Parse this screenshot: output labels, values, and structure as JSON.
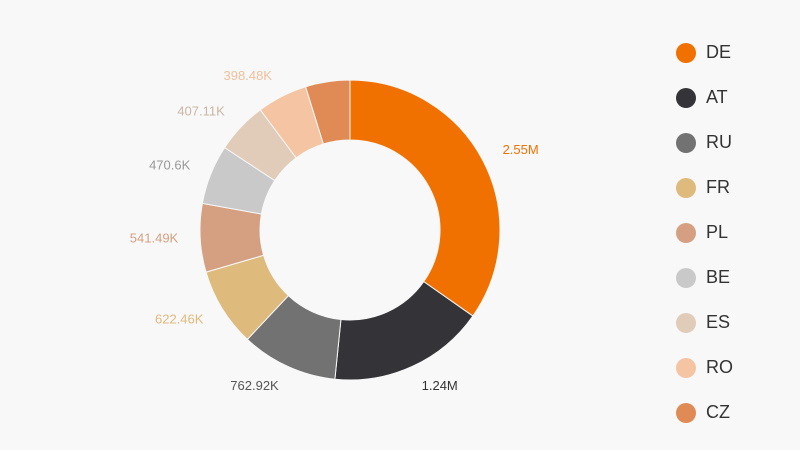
{
  "chart_data": {
    "type": "pie",
    "variant": "donut",
    "title": "",
    "categories": [
      "DE",
      "AT",
      "RU",
      "FR",
      "PL",
      "BE",
      "ES",
      "RO",
      "CZ"
    ],
    "values": [
      2550000,
      1240000,
      762920,
      622460,
      541490,
      470600,
      407110,
      398480,
      351000
    ],
    "value_labels": [
      "2.55M",
      "1.24M",
      "762.92K",
      "622.46K",
      "541.49K",
      "470.6K",
      "407.11K",
      "398.48K",
      ""
    ],
    "colors": [
      "#f07100",
      "#333338",
      "#717271",
      "#dfba7d",
      "#d4a081",
      "#c9c9c9",
      "#e1ccb9",
      "#f5c4a2",
      "#e08b55"
    ],
    "label_colors": [
      "#f07100",
      "#333333",
      "#555555",
      "#dfba7d",
      "#d4a081",
      "#999999",
      "#c9b6a6",
      "#f0bf9b",
      "#e08b55"
    ],
    "legend": {
      "position": "right",
      "items": [
        "DE",
        "AT",
        "RU",
        "FR",
        "PL",
        "BE",
        "ES",
        "RO",
        "CZ"
      ]
    }
  }
}
